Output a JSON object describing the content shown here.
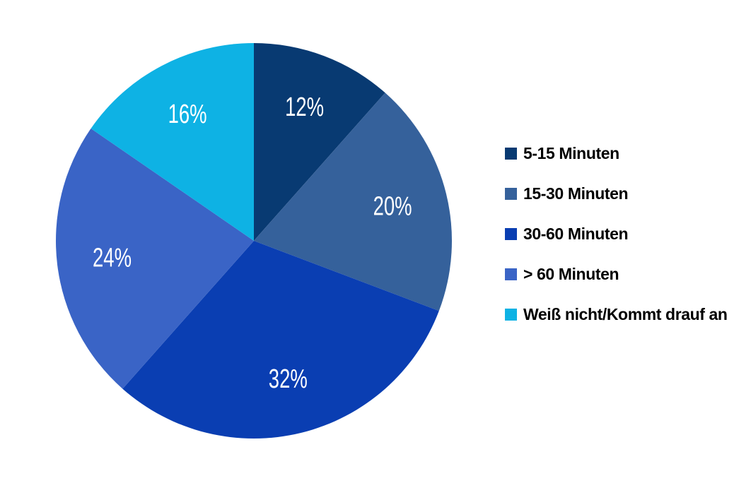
{
  "chart_data": {
    "type": "pie",
    "title": "",
    "labels": [
      "5-15 Minuten",
      "15-30 Minuten",
      "30-60 Minuten",
      "> 60 Minuten",
      "Weiß nicht/Kommt drauf an"
    ],
    "values": [
      12,
      20,
      32,
      24,
      16
    ],
    "value_labels": [
      "12%",
      "20%",
      "32%",
      "24%",
      "16%"
    ],
    "colors": [
      "#083a72",
      "#35619b",
      "#0a3eb2",
      "#3a64c6",
      "#0eb2e4"
    ],
    "start_angle_deg": 0,
    "direction": "clockwise",
    "legend_position": "right",
    "slice_label_color": "#ffffff",
    "legend_text_color": "#000000",
    "background": "#ffffff"
  }
}
